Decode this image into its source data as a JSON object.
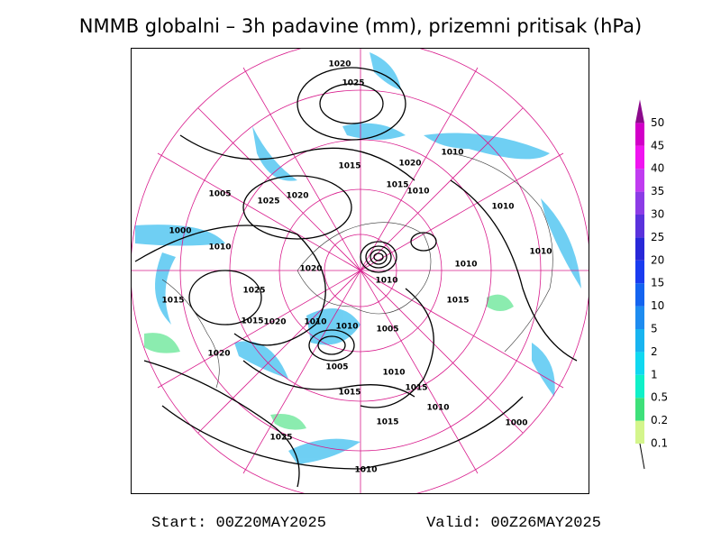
{
  "title": "NMMB globalni – 3h padavine (mm), prizemni pritisak (hPa)",
  "colorbar": {
    "levels": [
      0.1,
      0.2,
      0.5,
      1,
      2,
      5,
      10,
      15,
      20,
      25,
      30,
      35,
      40,
      45,
      50
    ],
    "colors": [
      "#d4f58c",
      "#3ee07a",
      "#10f0c8",
      "#10d8f0",
      "#18b4f0",
      "#1e8cf0",
      "#1464f0",
      "#1a3cf0",
      "#2828d8",
      "#5a32dc",
      "#8c3ce6",
      "#c03cf0",
      "#f014f0",
      "#d200c8",
      "#8c0a8c"
    ]
  },
  "isobar_labels": [
    1020,
    1025,
    1015,
    1020,
    1010,
    1015,
    1010,
    1010,
    1005,
    1025,
    1020,
    1000,
    1010,
    1015,
    1025,
    1020,
    1010,
    1010,
    1015,
    1010,
    1015,
    1020,
    1010,
    1005,
    1005,
    1010,
    1015,
    1015,
    1010,
    1015,
    1000,
    1025,
    1010,
    1020,
    1010
  ],
  "footer": {
    "start": "Start: 00Z20MAY2025",
    "valid": "Valid: 00Z26MAY2025"
  }
}
